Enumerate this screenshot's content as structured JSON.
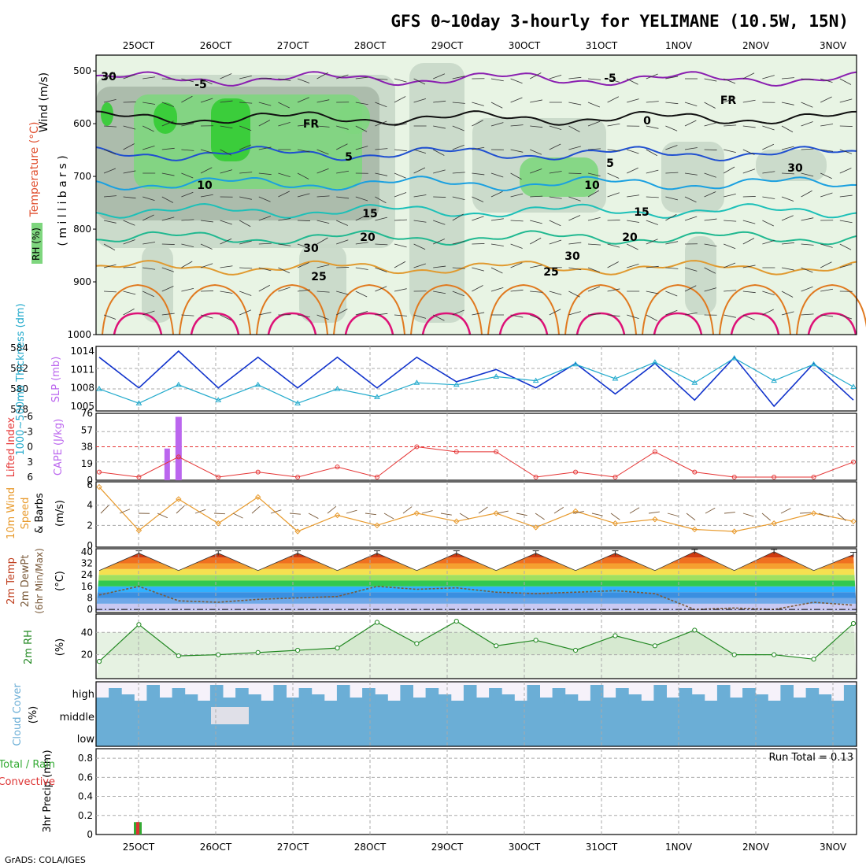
{
  "title": "GFS 0~10day 3-hourly for YELIMANE (10.5W, 15N)",
  "credit": "GrADS: COLA/IGES",
  "dates": [
    "25OCT",
    "26OCT",
    "27OCT",
    "28OCT",
    "29OCT",
    "30OCT",
    "31OCT",
    "1NOV",
    "2NOV",
    "3NOV"
  ],
  "colors": {
    "rh_light": "#e8f4e4",
    "rh_mid": "#c8d8c8",
    "rh_dark": "#a9b8a9",
    "rh_green": "#7ed67e",
    "rh_bright": "#33cc33",
    "thickness": "#22aacc",
    "slp": "#1133cc",
    "cape": "#bb66ee",
    "lifted": "#e53333",
    "wind": "#e89a2c",
    "barb": "#7a5a3a",
    "rh2m": "#228822",
    "cloud": "#6baed6",
    "rain": "#33aa33",
    "conv": "#dd3333"
  },
  "panels": {
    "upper": {
      "label_wind": "Wind (m/s)",
      "label_temp": "Temperature (°C)",
      "label_rh": "RH (%)",
      "label_mb": "( m i l l i b a r s )",
      "levels": [
        "500",
        "600",
        "700",
        "800",
        "900",
        "1000"
      ],
      "contour_labels": [
        "-5",
        "-5",
        "FR",
        "FR",
        "5",
        "5",
        "10",
        "10",
        "15",
        "15",
        "20",
        "20",
        "25",
        "25",
        "30",
        "30",
        "30",
        "30",
        "0"
      ]
    },
    "thickness_slp": {
      "label_thick": "1000~500mb Thickness (dm)",
      "label_slp": "SLP (mb)",
      "thick_ticks": [
        "584",
        "582",
        "580",
        "578"
      ],
      "slp_ticks": [
        "1014",
        "1011",
        "1008",
        "1005"
      ]
    },
    "cape": {
      "label_li": "Lifted Index",
      "label_cape": "CAPE (J/kg)",
      "li_ticks": [
        "-6",
        "-3",
        "0",
        "3",
        "6"
      ],
      "cape_ticks": [
        "76",
        "57",
        "38",
        "19",
        "0"
      ]
    },
    "wind10m": {
      "label_1": "10m Wind",
      "label_2": "Speed",
      "label_3": "& Barbs",
      "label_unit": "(m/s)",
      "ticks": [
        "6",
        "4",
        "2",
        "0"
      ]
    },
    "temp2m": {
      "label_1": "2m Temp",
      "label_2": "2m DewPt",
      "label_3": "(6hr Min/Max)",
      "label_unit": "(°C)",
      "ticks": [
        "40",
        "32",
        "24",
        "16",
        "8",
        "0"
      ]
    },
    "rh2m": {
      "label": "2m RH",
      "label_unit": "(%)",
      "ticks": [
        "40",
        "20"
      ]
    },
    "cloud": {
      "label": "Cloud Cover",
      "label_unit": "(%)",
      "levels": [
        "high",
        "middle",
        "low"
      ]
    },
    "precip": {
      "label_main": "3hr Precip (mm)",
      "label_total": "Total / Rain",
      "label_conv": "Convective",
      "run_total": "Run Total = 0.13",
      "ticks": [
        "0.8",
        "0.6",
        "0.4",
        "0.2",
        "0"
      ]
    }
  },
  "chart_data": [
    {
      "type": "line",
      "title": "1000~500mb Thickness (dm) / SLP (mb)",
      "x": [
        "25OCT00",
        "25OCT12",
        "26OCT00",
        "26OCT12",
        "27OCT00",
        "27OCT12",
        "28OCT00",
        "28OCT12",
        "29OCT00",
        "29OCT12",
        "30OCT00",
        "30OCT12",
        "31OCT00",
        "31OCT12",
        "1NOV00",
        "1NOV12",
        "2NOV00",
        "2NOV12",
        "3NOV00",
        "3NOV12"
      ],
      "series": [
        {
          "name": "SLP",
          "unit": "mb",
          "values": [
            1013,
            1008,
            1014,
            1008,
            1013,
            1008,
            1013,
            1008,
            1013,
            1009,
            1011,
            1008,
            1012,
            1007,
            1012,
            1006,
            1013,
            1005,
            1012,
            1006
          ]
        },
        {
          "name": "Thickness",
          "unit": "dm",
          "values": [
            580.0,
            578.6,
            580.4,
            578.9,
            580.4,
            578.6,
            580.0,
            579.2,
            580.6,
            580.4,
            581.2,
            580.8,
            582.4,
            581.0,
            582.6,
            580.6,
            583.0,
            580.8,
            582.4,
            580.2
          ]
        }
      ]
    },
    {
      "type": "line",
      "title": "Lifted Index / CAPE",
      "x": [
        "25OCT00",
        "25OCT12",
        "26OCT00",
        "26OCT12",
        "27OCT00",
        "27OCT12",
        "28OCT00",
        "28OCT12",
        "29OCT00",
        "29OCT12",
        "30OCT00",
        "30OCT12",
        "31OCT00",
        "31OCT12",
        "1NOV00",
        "1NOV12",
        "2NOV00",
        "2NOV12",
        "3NOV00",
        "3NOV12"
      ],
      "series": [
        {
          "name": "Lifted Index",
          "values": [
            5,
            6,
            2,
            6,
            5,
            6,
            4,
            6,
            0,
            1,
            1,
            6,
            5,
            6,
            1,
            5,
            6,
            6,
            6,
            3
          ]
        },
        {
          "name": "CAPE",
          "unit": "J/kg",
          "values": [
            0,
            0,
            72,
            0,
            0,
            0,
            0,
            0,
            0,
            0,
            0,
            0,
            0,
            0,
            0,
            0,
            0,
            0,
            0,
            0
          ]
        }
      ]
    },
    {
      "type": "line",
      "title": "10m Wind Speed",
      "x": [
        "25OCT00",
        "25OCT12",
        "26OCT00",
        "26OCT12",
        "27OCT00",
        "27OCT12",
        "28OCT00",
        "28OCT12",
        "29OCT00",
        "29OCT12",
        "30OCT00",
        "30OCT12",
        "31OCT00",
        "31OCT12",
        "1NOV00",
        "1NOV12",
        "2NOV00",
        "2NOV12",
        "3NOV00",
        "3NOV12"
      ],
      "series": [
        {
          "name": "Speed",
          "unit": "m/s",
          "values": [
            5.8,
            1.5,
            4.6,
            2.2,
            4.8,
            1.4,
            3.0,
            2.0,
            3.2,
            2.4,
            3.2,
            1.8,
            3.4,
            2.2,
            2.6,
            1.6,
            1.4,
            2.2,
            3.2,
            2.4
          ]
        }
      ]
    },
    {
      "type": "area",
      "title": "2m Temp / 2m DewPt",
      "x": [
        "25OCT00",
        "25OCT12",
        "26OCT00",
        "26OCT12",
        "27OCT00",
        "27OCT12",
        "28OCT00",
        "28OCT12",
        "29OCT00",
        "29OCT12",
        "30OCT00",
        "30OCT12",
        "31OCT00",
        "31OCT12",
        "1NOV00",
        "1NOV12",
        "2NOV00",
        "2NOV12",
        "3NOV00",
        "3NOV12"
      ],
      "series": [
        {
          "name": "2m Temp",
          "unit": "°C",
          "values": [
            27,
            39,
            27,
            39,
            27,
            39,
            27,
            39,
            27,
            39,
            27,
            39,
            27,
            39,
            27,
            40,
            27,
            40,
            27,
            38
          ]
        },
        {
          "name": "2m DewPt",
          "unit": "°C",
          "values": [
            10,
            16,
            6,
            5,
            7,
            8,
            9,
            16,
            14,
            15,
            12,
            11,
            12,
            13,
            11,
            0,
            1,
            0,
            5,
            3
          ]
        }
      ]
    },
    {
      "type": "area",
      "title": "2m RH",
      "x": [
        "25OCT00",
        "25OCT12",
        "26OCT00",
        "26OCT12",
        "27OCT00",
        "27OCT12",
        "28OCT00",
        "28OCT12",
        "29OCT00",
        "29OCT12",
        "30OCT00",
        "30OCT12",
        "31OCT00",
        "31OCT12",
        "1NOV00",
        "1NOV12",
        "2NOV00",
        "2NOV12",
        "3NOV00",
        "3NOV12"
      ],
      "series": [
        {
          "name": "2m RH",
          "unit": "%",
          "values": [
            14,
            47,
            19,
            20,
            22,
            24,
            26,
            49,
            30,
            50,
            28,
            33,
            24,
            37,
            28,
            42,
            20,
            20,
            16,
            48
          ]
        }
      ]
    },
    {
      "type": "bar",
      "title": "3hr Precip (mm)",
      "categories": [
        "25OCT"
      ],
      "series": [
        {
          "name": "Total / Rain",
          "values": [
            0.13
          ]
        },
        {
          "name": "Convective",
          "values": [
            0.13
          ]
        }
      ],
      "ylim": [
        0,
        0.9
      ]
    }
  ]
}
